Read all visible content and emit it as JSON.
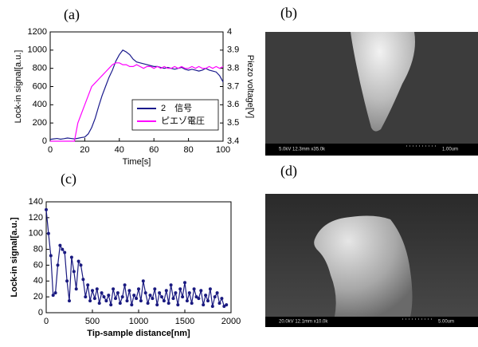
{
  "chart_data": [
    {
      "type": "line",
      "title": "(a)",
      "xlabel": "Time[s]",
      "ylabel": "Lock-in signal[a.u.]",
      "y2label": "Piezo voltage[V]",
      "x": [
        0,
        2,
        4,
        6,
        8,
        10,
        12,
        14,
        16,
        18,
        20,
        22,
        24,
        26,
        28,
        30,
        32,
        34,
        36,
        38,
        40,
        42,
        44,
        46,
        48,
        50,
        52,
        54,
        56,
        58,
        60,
        62,
        64,
        66,
        68,
        70,
        72,
        74,
        76,
        78,
        80,
        82,
        84,
        86,
        88,
        90,
        92,
        94,
        96,
        98,
        100
      ],
      "series": [
        {
          "name": "2　信号",
          "color": "#1a1a8c",
          "values": [
            20,
            25,
            30,
            22,
            28,
            35,
            30,
            25,
            32,
            40,
            45,
            80,
            150,
            250,
            380,
            500,
            600,
            700,
            780,
            880,
            950,
            1000,
            980,
            950,
            900,
            870,
            860,
            850,
            840,
            830,
            820,
            820,
            810,
            800,
            810,
            800,
            790,
            800,
            810,
            790,
            780,
            790,
            780,
            770,
            780,
            800,
            780,
            770,
            760,
            720,
            650
          ]
        },
        {
          "name": "ピエゾ電圧",
          "color": "#ff00ff",
          "axis": "y2",
          "values": [
            3.4,
            3.4,
            3.4,
            3.4,
            3.4,
            3.4,
            3.4,
            3.4,
            3.5,
            3.55,
            3.6,
            3.65,
            3.7,
            3.72,
            3.74,
            3.76,
            3.78,
            3.8,
            3.82,
            3.83,
            3.83,
            3.82,
            3.82,
            3.81,
            3.81,
            3.82,
            3.81,
            3.8,
            3.81,
            3.81,
            3.8,
            3.81,
            3.8,
            3.81,
            3.8,
            3.8,
            3.81,
            3.8,
            3.81,
            3.8,
            3.8,
            3.81,
            3.8,
            3.81,
            3.8,
            3.8,
            3.81,
            3.8,
            3.81,
            3.8,
            3.81
          ]
        }
      ],
      "xlim": [
        0,
        100
      ],
      "xticks": [
        0,
        20,
        40,
        60,
        80,
        100
      ],
      "ylim": [
        0,
        1200
      ],
      "yticks": [
        0,
        200,
        400,
        600,
        800,
        1000,
        1200
      ],
      "y2lim": [
        3.4,
        4
      ],
      "y2ticks": [
        3.4,
        3.5,
        3.6,
        3.7,
        3.8,
        3.9,
        4
      ],
      "legend": "lower right"
    },
    {
      "type": "line",
      "title": "(c)",
      "xlabel": "Tip-sample distance[nm]",
      "ylabel": "Lock-in signal[a.u.]",
      "markers": true,
      "x": [
        0,
        25,
        50,
        75,
        100,
        125,
        150,
        175,
        200,
        225,
        250,
        275,
        300,
        325,
        350,
        375,
        400,
        425,
        450,
        475,
        500,
        525,
        550,
        575,
        600,
        625,
        650,
        675,
        700,
        725,
        750,
        775,
        800,
        825,
        850,
        875,
        900,
        925,
        950,
        975,
        1000,
        1025,
        1050,
        1075,
        1100,
        1125,
        1150,
        1175,
        1200,
        1225,
        1250,
        1275,
        1300,
        1325,
        1350,
        1375,
        1400,
        1425,
        1450,
        1475,
        1500,
        1525,
        1550,
        1575,
        1600,
        1625,
        1650,
        1675,
        1700,
        1725,
        1750,
        1775,
        1800,
        1825,
        1850,
        1875,
        1900,
        1925,
        1950
      ],
      "series": [
        {
          "color": "#1a1a80",
          "values": [
            130,
            100,
            72,
            22,
            25,
            60,
            85,
            80,
            76,
            40,
            15,
            70,
            52,
            30,
            65,
            60,
            42,
            20,
            35,
            15,
            28,
            18,
            30,
            12,
            25,
            20,
            15,
            22,
            10,
            30,
            18,
            25,
            12,
            20,
            35,
            15,
            28,
            10,
            22,
            18,
            30,
            15,
            40,
            25,
            12,
            22,
            18,
            30,
            10,
            25,
            20,
            15,
            28,
            12,
            35,
            18,
            25,
            10,
            30,
            20,
            38,
            15,
            25,
            12,
            30,
            20,
            18,
            28,
            10,
            22,
            15,
            30,
            8,
            20,
            25,
            12,
            18,
            8,
            10
          ]
        }
      ],
      "xlim": [
        0,
        2000
      ],
      "xticks": [
        0,
        500,
        1000,
        1500,
        2000
      ],
      "ylim": [
        0,
        140
      ],
      "yticks": [
        0,
        20,
        40,
        60,
        80,
        100,
        120,
        140
      ]
    }
  ],
  "images": [
    {
      "label": "(b)",
      "info": "5.0kV 12.3mm x35.0k",
      "scale": "1.00um"
    },
    {
      "label": "(d)",
      "info": "20.0kV 12.1mm x10.0k",
      "scale": "5.00um"
    }
  ]
}
